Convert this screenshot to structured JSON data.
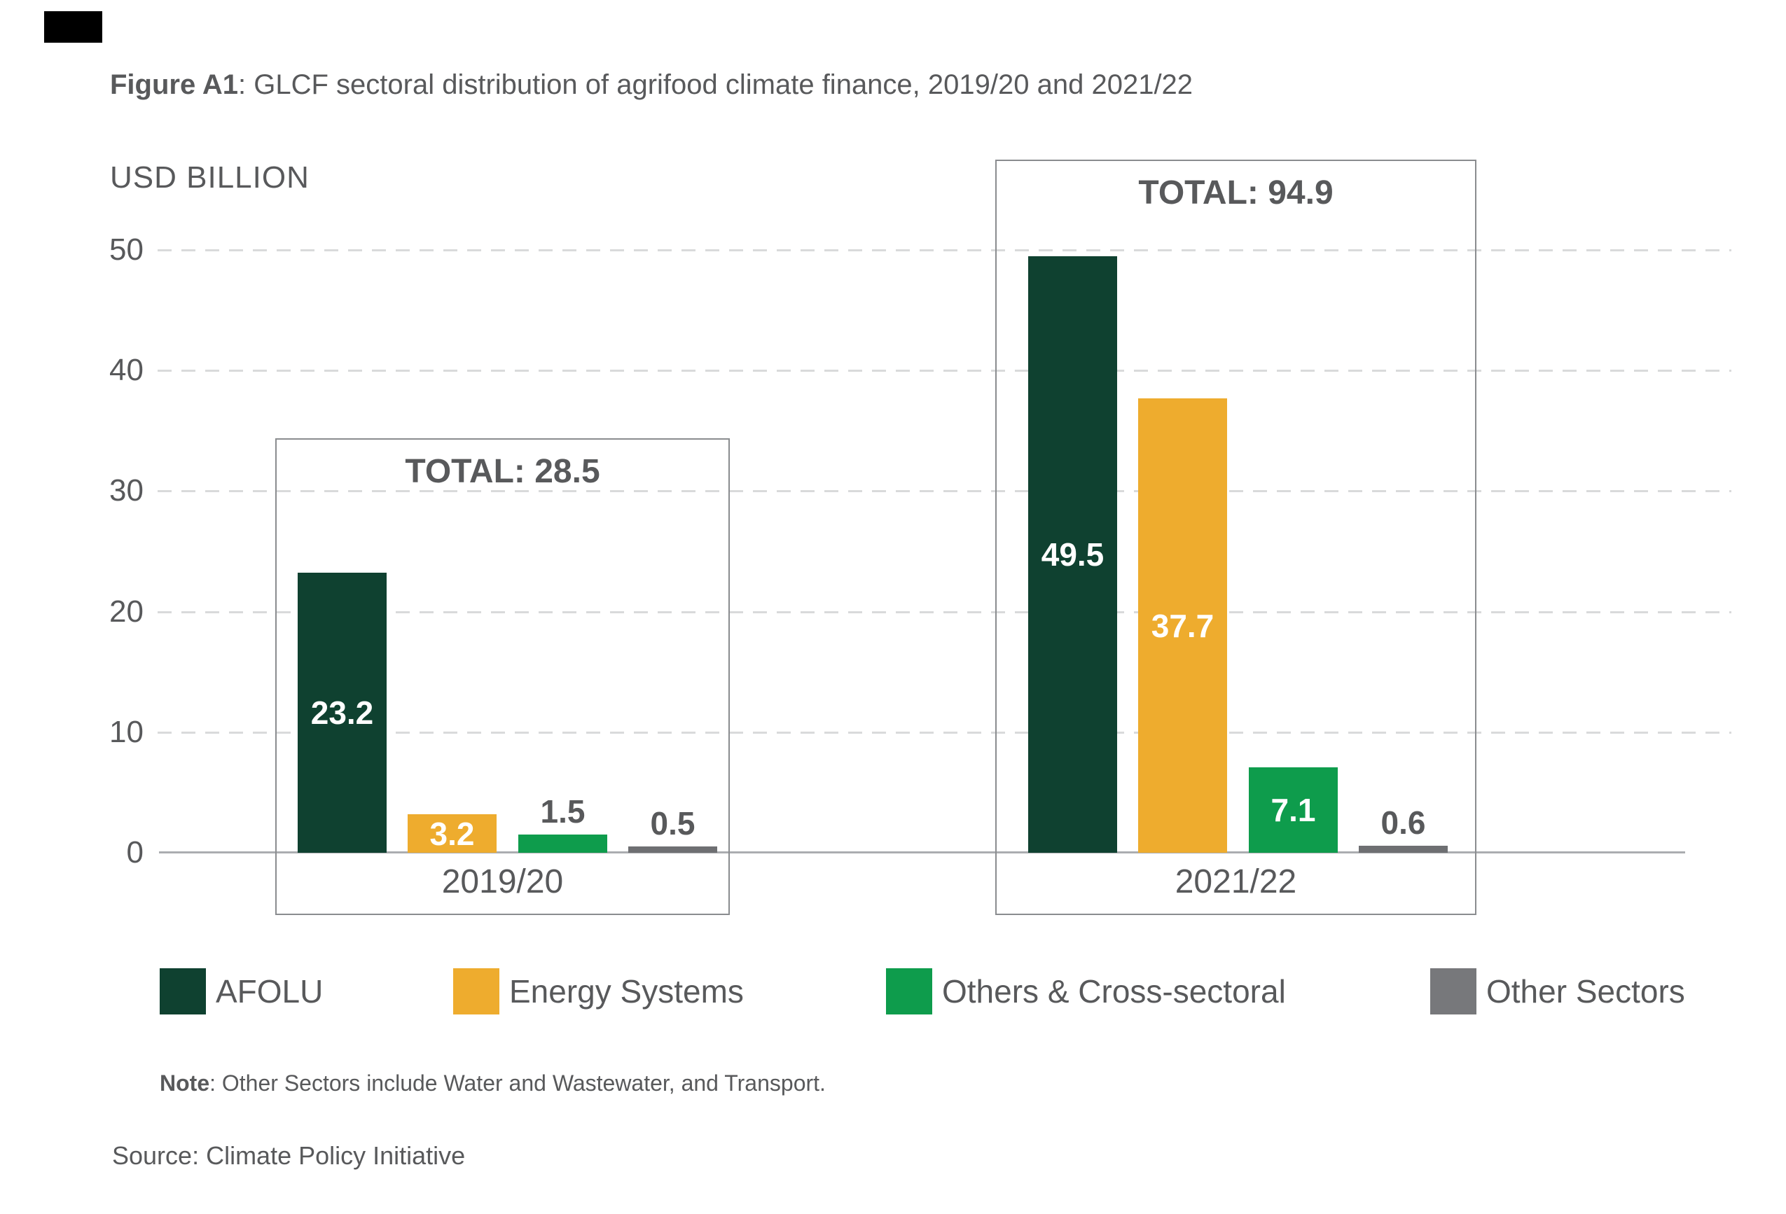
{
  "title": {
    "prefix": "Figure A1",
    "rest": ": GLCF sectoral distribution of agrifood climate finance, 2019/20 and 2021/22"
  },
  "axis": {
    "unit_label": "USD BILLION",
    "ticks": [
      50,
      40,
      30,
      20,
      10,
      0
    ]
  },
  "chart_data": {
    "type": "bar",
    "title": "GLCF sectoral distribution of agrifood climate finance, 2019/20 and 2021/22",
    "xlabel": "",
    "ylabel": "USD BILLION",
    "ylim": [
      0,
      50
    ],
    "grid": "dashed-horizontal",
    "legend_position": "bottom",
    "categories": [
      "2019/20",
      "2021/22"
    ],
    "series": [
      {
        "name": "AFOLU",
        "color": "#0F4130",
        "values": [
          23.2,
          49.5
        ]
      },
      {
        "name": "Energy Systems",
        "color": "#EEAC2E",
        "values": [
          3.2,
          37.7
        ]
      },
      {
        "name": "Others & Cross-sectoral",
        "color": "#0E9C4C",
        "values": [
          1.5,
          7.1
        ]
      },
      {
        "name": "Other Sectors",
        "color": "#6E6F72",
        "values": [
          0.5,
          0.6
        ]
      }
    ],
    "totals": [
      28.5,
      94.9
    ]
  },
  "groups": [
    {
      "category": "2019/20",
      "total_label": "TOTAL: 28.5"
    },
    {
      "category": "2021/22",
      "total_label": "TOTAL: 94.9"
    }
  ],
  "legend": {
    "items": [
      {
        "label": "AFOLU",
        "color": "#0F4130"
      },
      {
        "label": "Energy Systems",
        "color": "#EEAC2E"
      },
      {
        "label": "Others & Cross-sectoral",
        "color": "#0E9C4C"
      },
      {
        "label": "Other Sectors",
        "color": "#77787B"
      }
    ]
  },
  "note": {
    "prefix": "Note",
    "rest": ": Other Sectors include Water and Wastewater, and Transport."
  },
  "source": {
    "text": "Source: Climate Policy Initiative"
  }
}
